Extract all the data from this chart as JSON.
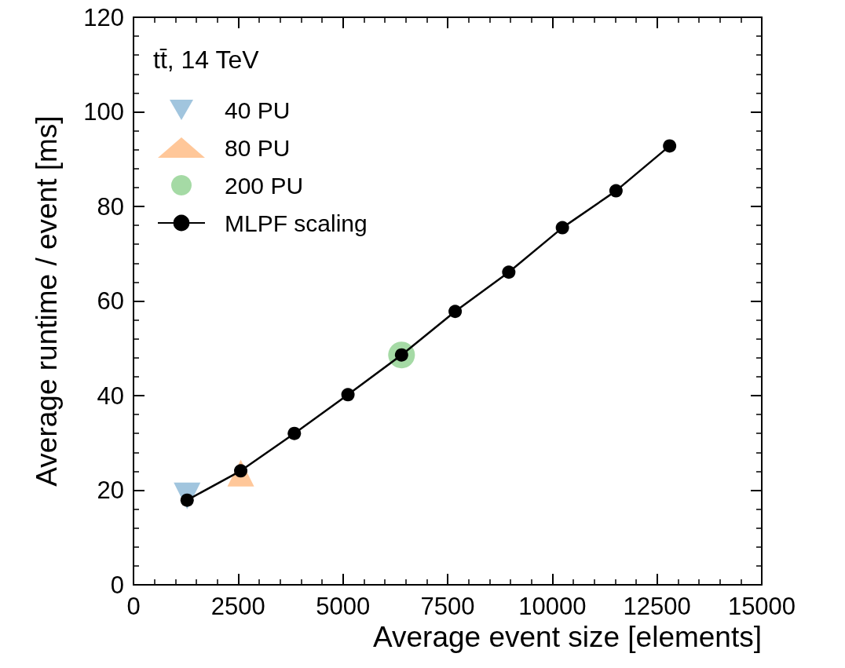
{
  "chart_data": {
    "type": "scatter",
    "xlabel": "Average event size [elements]",
    "ylabel": "Average runtime / event [ms]",
    "legend_title": "tt̄, 14 TeV",
    "xlim": [
      0,
      15000
    ],
    "xticks": [
      0,
      2500,
      5000,
      7500,
      10000,
      12500,
      15000
    ],
    "ylim": [
      0,
      120
    ],
    "yticks": [
      0,
      20,
      40,
      60,
      80,
      100,
      120
    ],
    "grid": false,
    "legend": "top left",
    "series": [
      {
        "name": "40 PU",
        "type": "scatter",
        "marker": "triangle-down",
        "color": "#8ab6d6",
        "x": [
          1280
        ],
        "values": [
          18.8
        ]
      },
      {
        "name": "80 PU",
        "type": "scatter",
        "marker": "triangle",
        "color": "#ffb980",
        "x": [
          2560
        ],
        "values": [
          23.6
        ]
      },
      {
        "name": "200 PU",
        "type": "scatter",
        "marker": "circle",
        "color": "#8fd18f",
        "x": [
          6400
        ],
        "values": [
          48.6
        ]
      },
      {
        "name": "MLPF scaling",
        "type": "line",
        "marker": "circle",
        "line_style": "solid",
        "color": "#000000",
        "x": [
          1280,
          2560,
          3840,
          5120,
          6400,
          7680,
          8960,
          10240,
          11520,
          12800
        ],
        "values": [
          17.9,
          24.1,
          32.0,
          40.2,
          48.6,
          57.8,
          66.1,
          75.5,
          83.3,
          92.8
        ]
      }
    ]
  }
}
